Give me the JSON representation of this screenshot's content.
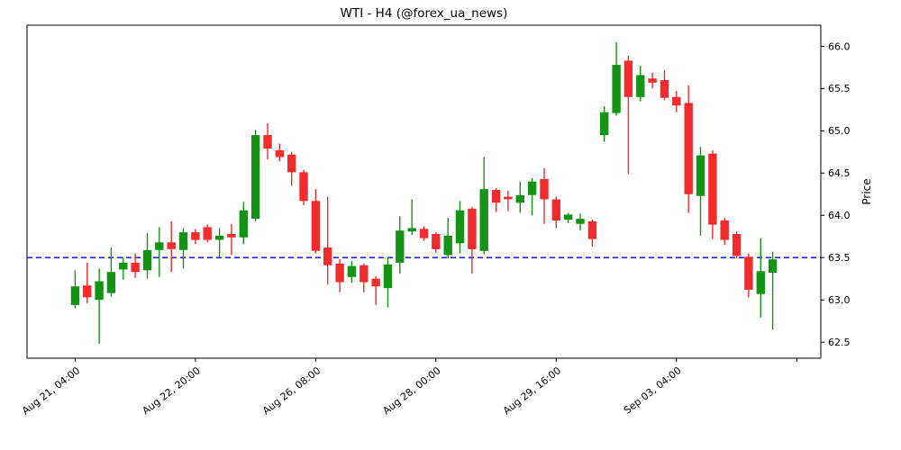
{
  "figure": {
    "title": "WTI - H4 (@forex_ua_news)",
    "background": "#ffffff"
  },
  "chart_data": {
    "type": "candlestick",
    "title": "WTI - H4 (@forex_ua_news)",
    "xlabel": "",
    "ylabel": "Price",
    "ylabel_position": "right",
    "grid": false,
    "legend": "none",
    "ylim": [
      62.31,
      66.25
    ],
    "yticks": [
      62.5,
      63.0,
      63.5,
      64.0,
      64.5,
      65.0,
      65.5,
      66.0
    ],
    "ytick_format": "one_decimal",
    "xlim_index": [
      -4,
      62
    ],
    "xticks": [
      {
        "index": 0,
        "label": "Aug 21, 04:00"
      },
      {
        "index": 10,
        "label": "Aug 22, 20:00"
      },
      {
        "index": 20,
        "label": "Aug 26, 08:00"
      },
      {
        "index": 30,
        "label": "Aug 28, 00:00"
      },
      {
        "index": 40,
        "label": "Aug 29, 16:00"
      },
      {
        "index": 50,
        "label": "Sep 03, 04:00"
      },
      {
        "index": 60,
        "label": ""
      }
    ],
    "hline": {
      "value": 63.5,
      "color": "#0000ee",
      "style": "dashed"
    },
    "colors": {
      "up": "#149414",
      "down": "#f22c2c",
      "axis": "#000000",
      "text": "#000000"
    },
    "candles": [
      {
        "o": 62.94,
        "h": 63.35,
        "l": 62.9,
        "c": 63.16
      },
      {
        "o": 63.17,
        "h": 63.44,
        "l": 62.96,
        "c": 63.03
      },
      {
        "o": 63.0,
        "h": 63.37,
        "l": 62.48,
        "c": 63.22
      },
      {
        "o": 63.08,
        "h": 63.62,
        "l": 63.04,
        "c": 63.33
      },
      {
        "o": 63.36,
        "h": 63.5,
        "l": 63.24,
        "c": 63.44
      },
      {
        "o": 63.44,
        "h": 63.55,
        "l": 63.26,
        "c": 63.33
      },
      {
        "o": 63.35,
        "h": 63.79,
        "l": 63.25,
        "c": 63.59
      },
      {
        "o": 63.59,
        "h": 63.86,
        "l": 63.27,
        "c": 63.68
      },
      {
        "o": 63.68,
        "h": 63.93,
        "l": 63.33,
        "c": 63.6
      },
      {
        "o": 63.59,
        "h": 63.85,
        "l": 63.37,
        "c": 63.8
      },
      {
        "o": 63.8,
        "h": 63.84,
        "l": 63.66,
        "c": 63.71
      },
      {
        "o": 63.86,
        "h": 63.89,
        "l": 63.68,
        "c": 63.71
      },
      {
        "o": 63.71,
        "h": 63.85,
        "l": 63.5,
        "c": 63.76
      },
      {
        "o": 63.78,
        "h": 63.9,
        "l": 63.53,
        "c": 63.74
      },
      {
        "o": 63.74,
        "h": 64.16,
        "l": 63.66,
        "c": 64.06
      },
      {
        "o": 63.96,
        "h": 65.01,
        "l": 63.93,
        "c": 64.95
      },
      {
        "o": 64.95,
        "h": 65.09,
        "l": 64.66,
        "c": 64.79
      },
      {
        "o": 64.77,
        "h": 64.85,
        "l": 64.64,
        "c": 64.69
      },
      {
        "o": 64.72,
        "h": 64.75,
        "l": 64.35,
        "c": 64.51
      },
      {
        "o": 64.51,
        "h": 64.54,
        "l": 64.12,
        "c": 64.17
      },
      {
        "o": 64.17,
        "h": 64.31,
        "l": 63.55,
        "c": 63.58
      },
      {
        "o": 63.62,
        "h": 64.22,
        "l": 63.18,
        "c": 63.41
      },
      {
        "o": 63.43,
        "h": 63.48,
        "l": 63.09,
        "c": 63.21
      },
      {
        "o": 63.27,
        "h": 63.46,
        "l": 63.2,
        "c": 63.4
      },
      {
        "o": 63.41,
        "h": 63.43,
        "l": 63.09,
        "c": 63.21
      },
      {
        "o": 63.25,
        "h": 63.28,
        "l": 62.94,
        "c": 63.16
      },
      {
        "o": 63.14,
        "h": 63.51,
        "l": 62.91,
        "c": 63.42
      },
      {
        "o": 63.44,
        "h": 63.99,
        "l": 63.31,
        "c": 63.82
      },
      {
        "o": 63.81,
        "h": 64.19,
        "l": 63.77,
        "c": 63.85
      },
      {
        "o": 63.84,
        "h": 63.87,
        "l": 63.7,
        "c": 63.73
      },
      {
        "o": 63.78,
        "h": 63.8,
        "l": 63.56,
        "c": 63.6
      },
      {
        "o": 63.53,
        "h": 63.97,
        "l": 63.49,
        "c": 63.76
      },
      {
        "o": 63.67,
        "h": 64.17,
        "l": 63.55,
        "c": 64.06
      },
      {
        "o": 64.08,
        "h": 64.1,
        "l": 63.31,
        "c": 63.6
      },
      {
        "o": 63.58,
        "h": 64.69,
        "l": 63.54,
        "c": 64.31
      },
      {
        "o": 64.3,
        "h": 64.32,
        "l": 64.04,
        "c": 64.15
      },
      {
        "o": 64.22,
        "h": 64.29,
        "l": 64.05,
        "c": 64.19
      },
      {
        "o": 64.15,
        "h": 64.4,
        "l": 64.03,
        "c": 64.24
      },
      {
        "o": 64.24,
        "h": 64.44,
        "l": 64.0,
        "c": 64.4
      },
      {
        "o": 64.43,
        "h": 64.56,
        "l": 63.9,
        "c": 64.19
      },
      {
        "o": 64.19,
        "h": 64.22,
        "l": 63.85,
        "c": 63.94
      },
      {
        "o": 63.95,
        "h": 64.03,
        "l": 63.91,
        "c": 64.01
      },
      {
        "o": 63.9,
        "h": 64.02,
        "l": 63.82,
        "c": 63.96
      },
      {
        "o": 63.93,
        "h": 63.95,
        "l": 63.63,
        "c": 63.72
      },
      {
        "o": 64.95,
        "h": 65.29,
        "l": 64.87,
        "c": 65.22
      },
      {
        "o": 65.21,
        "h": 66.05,
        "l": 65.18,
        "c": 65.78
      },
      {
        "o": 65.83,
        "h": 65.89,
        "l": 64.49,
        "c": 65.4
      },
      {
        "o": 65.4,
        "h": 65.77,
        "l": 65.35,
        "c": 65.66
      },
      {
        "o": 65.62,
        "h": 65.69,
        "l": 65.5,
        "c": 65.57
      },
      {
        "o": 65.6,
        "h": 65.72,
        "l": 65.36,
        "c": 65.39
      },
      {
        "o": 65.4,
        "h": 65.47,
        "l": 65.22,
        "c": 65.3
      },
      {
        "o": 65.33,
        "h": 65.54,
        "l": 64.03,
        "c": 64.25
      },
      {
        "o": 64.23,
        "h": 64.81,
        "l": 63.76,
        "c": 64.71
      },
      {
        "o": 64.73,
        "h": 64.77,
        "l": 63.72,
        "c": 63.89
      },
      {
        "o": 63.94,
        "h": 63.97,
        "l": 63.65,
        "c": 63.71
      },
      {
        "o": 63.78,
        "h": 63.81,
        "l": 63.49,
        "c": 63.52
      },
      {
        "o": 63.51,
        "h": 63.55,
        "l": 63.03,
        "c": 63.12
      },
      {
        "o": 63.07,
        "h": 63.73,
        "l": 62.79,
        "c": 63.34
      },
      {
        "o": 63.32,
        "h": 63.57,
        "l": 62.65,
        "c": 63.48
      }
    ]
  }
}
